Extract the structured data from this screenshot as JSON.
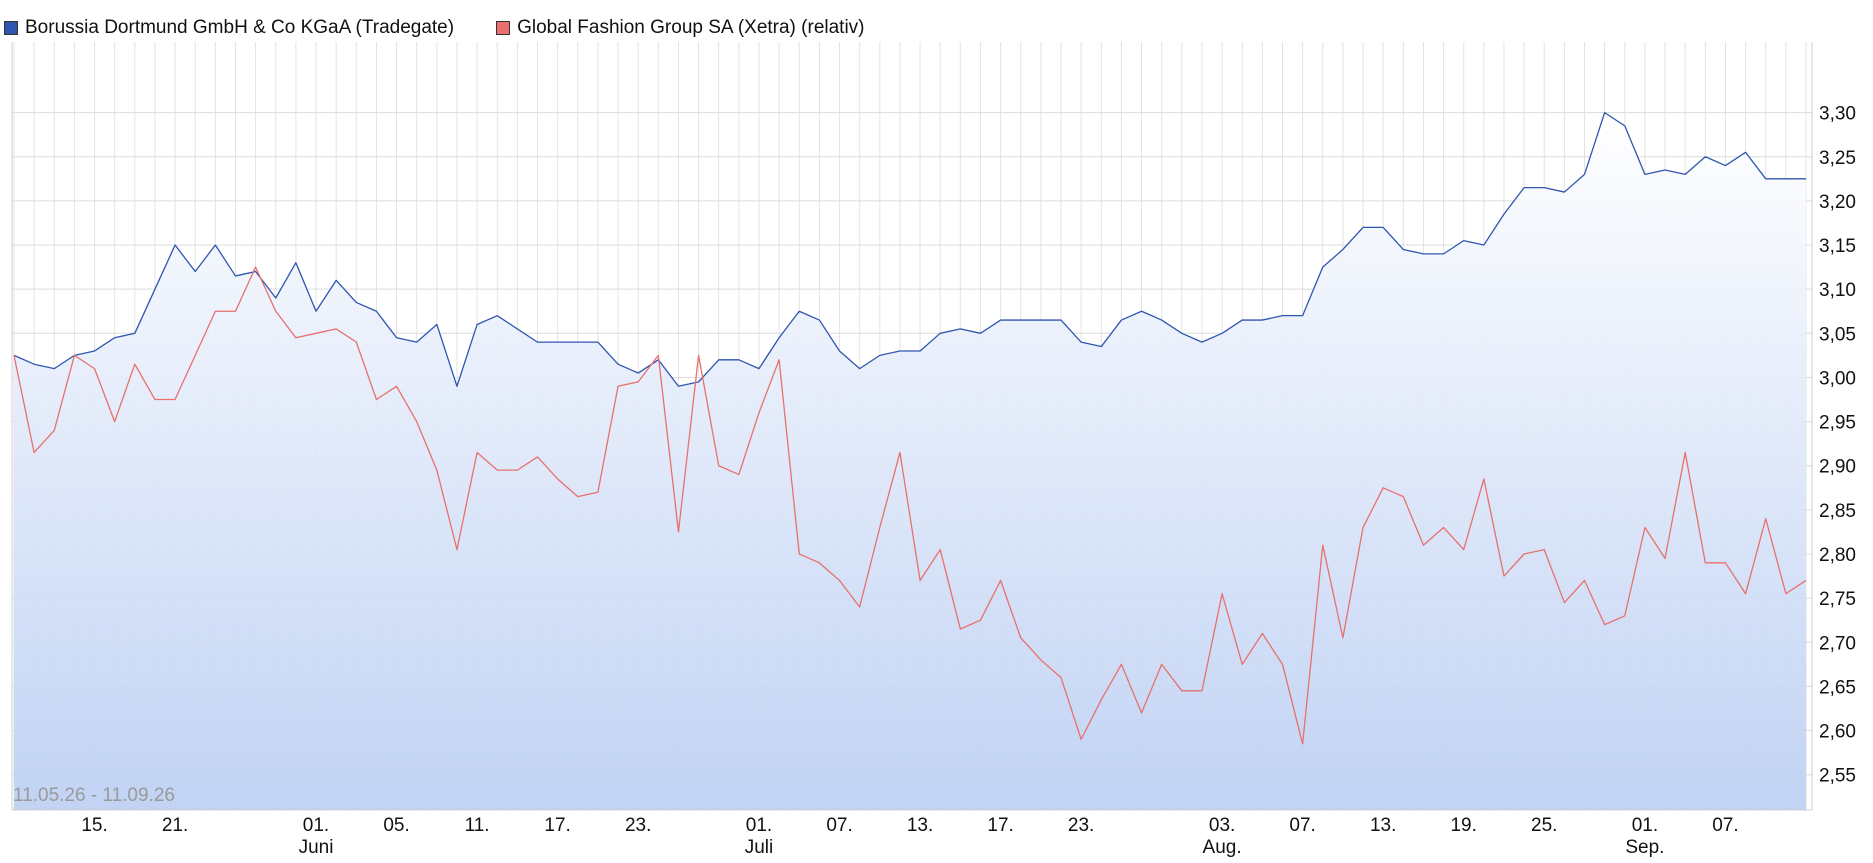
{
  "legend": {
    "items": [
      {
        "label": "Borussia Dortmund GmbH & Co KGaA (Tradegate)",
        "color": "#2e56b0"
      },
      {
        "label": "Global Fashion Group SA (Xetra) (relativ)",
        "color": "#e8706d"
      }
    ]
  },
  "chart_data": {
    "type": "line",
    "date_range": "11.05.26 - 11.09.26",
    "ylim": [
      2.51,
      3.38
    ],
    "y_ticks": [
      2.55,
      2.6,
      2.65,
      2.7,
      2.75,
      2.8,
      2.85,
      2.9,
      2.95,
      3.0,
      3.05,
      3.1,
      3.15,
      3.2,
      3.25,
      3.3
    ],
    "y_tick_labels": [
      "2,55",
      "2,60",
      "2,65",
      "2,70",
      "2,75",
      "2,80",
      "2,85",
      "2,90",
      "2,95",
      "3,00",
      "3,05",
      "3,10",
      "3,15",
      "3,20",
      "3,25",
      "3,30"
    ],
    "x": [
      "11.05.",
      "12.05.",
      "13.05.",
      "14.05.",
      "15.05.",
      "18.05.",
      "19.05.",
      "20.05.",
      "21.05.",
      "22.05.",
      "25.05.",
      "26.05.",
      "27.05.",
      "28.05.",
      "29.05.",
      "01.06.",
      "02.06.",
      "03.06.",
      "04.06.",
      "05.06.",
      "08.06.",
      "09.06.",
      "10.06.",
      "11.06.",
      "12.06.",
      "15.06.",
      "16.06.",
      "17.06.",
      "18.06.",
      "19.06.",
      "22.06.",
      "23.06.",
      "24.06.",
      "25.06.",
      "26.06.",
      "29.06.",
      "30.06.",
      "01.07.",
      "02.07.",
      "03.07.",
      "06.07.",
      "07.07.",
      "08.07.",
      "09.07.",
      "10.07.",
      "13.07.",
      "14.07.",
      "15.07.",
      "16.07.",
      "17.07.",
      "20.07.",
      "21.07.",
      "22.07.",
      "23.07.",
      "24.07.",
      "27.07.",
      "28.07.",
      "29.07.",
      "30.07.",
      "31.07.",
      "03.08.",
      "04.08.",
      "05.08.",
      "06.08.",
      "07.08.",
      "10.08.",
      "11.08.",
      "12.08.",
      "13.08.",
      "14.08.",
      "17.08.",
      "18.08.",
      "19.08.",
      "20.08.",
      "21.08.",
      "24.08.",
      "25.08.",
      "26.08.",
      "27.08.",
      "28.08.",
      "31.08.",
      "01.09.",
      "02.09.",
      "03.09.",
      "04.09.",
      "07.09.",
      "08.09.",
      "09.09.",
      "10.09.",
      "11.09."
    ],
    "x_ticks": [
      {
        "x": "15.05.",
        "label": "15.",
        "month": ""
      },
      {
        "x": "21.05.",
        "label": "21.",
        "month": ""
      },
      {
        "x": "01.06.",
        "label": "01.",
        "month": "Juni"
      },
      {
        "x": "05.06.",
        "label": "05.",
        "month": ""
      },
      {
        "x": "11.06.",
        "label": "11.",
        "month": ""
      },
      {
        "x": "17.06.",
        "label": "17.",
        "month": ""
      },
      {
        "x": "23.06.",
        "label": "23.",
        "month": ""
      },
      {
        "x": "01.07.",
        "label": "01.",
        "month": "Juli"
      },
      {
        "x": "07.07.",
        "label": "07.",
        "month": ""
      },
      {
        "x": "13.07.",
        "label": "13.",
        "month": ""
      },
      {
        "x": "17.07.",
        "label": "17.",
        "month": ""
      },
      {
        "x": "23.07.",
        "label": "23.",
        "month": ""
      },
      {
        "x": "03.08.",
        "label": "03.",
        "month": "Aug."
      },
      {
        "x": "07.08.",
        "label": "07.",
        "month": ""
      },
      {
        "x": "13.08.",
        "label": "13.",
        "month": ""
      },
      {
        "x": "19.08.",
        "label": "19.",
        "month": ""
      },
      {
        "x": "25.08.",
        "label": "25.",
        "month": ""
      },
      {
        "x": "01.09.",
        "label": "01.",
        "month": "Sep."
      },
      {
        "x": "07.09.",
        "label": "07.",
        "month": ""
      }
    ],
    "grid": true,
    "legend_position": "top-left",
    "series": [
      {
        "name": "Borussia Dortmund GmbH & Co KGaA (Tradegate)",
        "color": "#2e56b0",
        "area": true,
        "values": [
          3.025,
          3.015,
          3.01,
          3.025,
          3.03,
          3.045,
          3.05,
          3.1,
          3.15,
          3.12,
          3.15,
          3.115,
          3.12,
          3.09,
          3.13,
          3.075,
          3.11,
          3.085,
          3.075,
          3.045,
          3.04,
          3.06,
          2.99,
          3.06,
          3.07,
          3.055,
          3.04,
          3.04,
          3.04,
          3.04,
          3.015,
          3.005,
          3.02,
          2.99,
          2.995,
          3.02,
          3.02,
          3.01,
          3.045,
          3.075,
          3.065,
          3.03,
          3.01,
          3.025,
          3.03,
          3.03,
          3.05,
          3.055,
          3.05,
          3.065,
          3.065,
          3.065,
          3.065,
          3.04,
          3.035,
          3.065,
          3.075,
          3.065,
          3.05,
          3.04,
          3.05,
          3.065,
          3.065,
          3.07,
          3.07,
          3.125,
          3.145,
          3.17,
          3.17,
          3.145,
          3.14,
          3.14,
          3.155,
          3.15,
          3.185,
          3.215,
          3.215,
          3.21,
          3.23,
          3.3,
          3.285,
          3.23,
          3.235,
          3.23,
          3.25,
          3.24,
          3.255,
          3.225,
          3.225,
          3.225
        ]
      },
      {
        "name": "Global Fashion Group SA (Xetra) (relativ)",
        "color": "#e8706d",
        "area": false,
        "values": [
          3.025,
          2.915,
          2.94,
          3.025,
          3.01,
          2.95,
          3.015,
          2.975,
          2.975,
          3.025,
          3.075,
          3.075,
          3.125,
          3.075,
          3.045,
          3.05,
          3.055,
          3.04,
          2.975,
          2.99,
          2.95,
          2.895,
          2.805,
          2.915,
          2.895,
          2.895,
          2.91,
          2.885,
          2.865,
          2.87,
          2.99,
          2.995,
          3.025,
          2.825,
          3.025,
          2.9,
          2.89,
          2.96,
          3.02,
          2.8,
          2.79,
          2.77,
          2.74,
          2.83,
          2.915,
          2.77,
          2.805,
          2.715,
          2.725,
          2.77,
          2.705,
          2.68,
          2.66,
          2.59,
          2.635,
          2.675,
          2.62,
          2.675,
          2.645,
          2.645,
          2.755,
          2.675,
          2.71,
          2.675,
          2.585,
          2.81,
          2.705,
          2.83,
          2.875,
          2.865,
          2.81,
          2.83,
          2.805,
          2.885,
          2.775,
          2.8,
          2.805,
          2.745,
          2.77,
          2.72,
          2.73,
          2.83,
          2.795,
          2.915,
          2.79,
          2.79,
          2.755,
          2.84,
          2.755,
          2.77
        ]
      }
    ]
  }
}
